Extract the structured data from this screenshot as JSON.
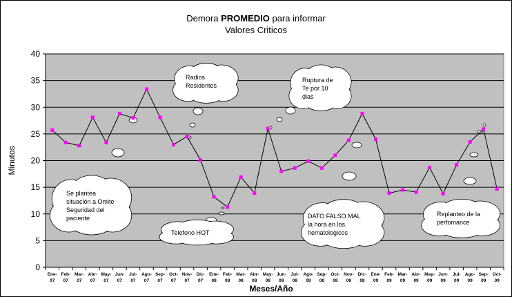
{
  "colors": {
    "plot_background": "#c0c0c0",
    "series_line": "#000000",
    "point_marker": "#ff00ff",
    "cloud_fill": "#ffffff"
  },
  "chart_data": {
    "type": "line",
    "title_prefix": "Demora ",
    "title_bold": "PROMEDIO",
    "title_suffix": " para informar",
    "subtitle": "Valores Criticos",
    "xlabel": "Meses/Año",
    "ylabel": "Minutos",
    "ylim": [
      0,
      40
    ],
    "yticks": [
      0,
      5,
      10,
      15,
      20,
      25,
      30,
      35,
      40
    ],
    "grid": true,
    "legend": "none",
    "categories": [
      [
        "Ene-",
        "07"
      ],
      [
        "Feb-",
        "07"
      ],
      [
        "Mar-",
        "07"
      ],
      [
        "Abr-",
        "07"
      ],
      [
        "May-",
        "07"
      ],
      [
        "Jun-",
        "07"
      ],
      [
        "Jul-",
        "07"
      ],
      [
        "Ago-",
        "07"
      ],
      [
        "Sep-",
        "07"
      ],
      [
        "Oct-",
        "07"
      ],
      [
        "Nov-",
        "07"
      ],
      [
        "Dic-",
        "07"
      ],
      [
        "Ene-",
        "08"
      ],
      [
        "Feb-",
        "08"
      ],
      [
        "Mar-",
        "08"
      ],
      [
        "Abr-",
        "08"
      ],
      [
        "May-",
        "08"
      ],
      [
        "Jun-",
        "08"
      ],
      [
        "Jul-",
        "08"
      ],
      [
        "Ago-",
        "08"
      ],
      [
        "Sep-",
        "08"
      ],
      [
        "Oct-",
        "08"
      ],
      [
        "Nov-",
        "08"
      ],
      [
        "Dic-",
        "08"
      ],
      [
        "Ene-",
        "09"
      ],
      [
        "Feb-",
        "09"
      ],
      [
        "Mar-",
        "09"
      ],
      [
        "Abr-",
        "09"
      ],
      [
        "May-",
        "09"
      ],
      [
        "Jun-",
        "09"
      ],
      [
        "Jul-",
        "09"
      ],
      [
        "Ago-",
        "09"
      ],
      [
        "Sep-",
        "09"
      ],
      [
        "Oct-",
        "09"
      ]
    ],
    "series": [
      {
        "values": [
          25.7,
          23.4,
          22.8,
          28.1,
          23.4,
          28.8,
          28.0,
          33.4,
          28.1,
          23.0,
          24.5,
          20.1,
          13.2,
          11.3,
          16.9,
          13.9,
          26.0,
          18.0,
          18.6,
          19.9,
          18.6,
          21.0,
          23.8,
          28.8,
          24.0,
          13.9,
          14.5,
          14.1,
          18.7,
          13.8,
          19.2,
          23.5,
          25.9,
          14.7
        ]
      }
    ],
    "annotations": [
      {
        "lines": [
          "Radios",
          "Residentes"
        ],
        "near_category": "Oct-07"
      },
      {
        "lines": [
          "Ruptura de",
          "Te por 10",
          "dias"
        ],
        "near_category": "Jul-08"
      },
      {
        "lines": [
          "Se plantea",
          "situación a Omite",
          "Seguridad del",
          "paciente"
        ],
        "near_category": "Feb-07"
      },
      {
        "lines": [
          "Telefono  HOT"
        ],
        "near_category": "Dic-07"
      },
      {
        "lines": [
          "DATO FALSO MAL",
          "la hora en los",
          "hematologicos"
        ],
        "near_category": "Oct-08"
      },
      {
        "lines": [
          "Replanteo de la",
          "perfomance"
        ],
        "near_category": "Jul-09"
      }
    ]
  }
}
